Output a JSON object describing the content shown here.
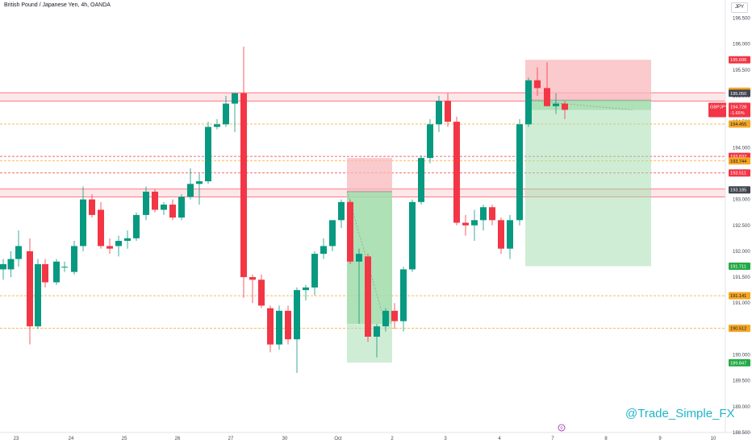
{
  "header": {
    "title": "British Pound / Japanese Yen, 4h, OANDA",
    "currency": "JPY"
  },
  "watermark": "@Trade_Simple_FX",
  "colors": {
    "up": "#089981",
    "down": "#f23645",
    "zone_fill": "#fde1e3",
    "zone_line": "#f7525f",
    "dashed_orange": "#f5a623",
    "dashed_red": "#f23645",
    "tp_fill": "#9fdca9",
    "sl_fill": "#f8b8bc"
  },
  "chart_data": {
    "type": "candlestick",
    "title": "British Pound / Japanese Yen, 4h, OANDA",
    "ylim": [
      188.5,
      196.85
    ],
    "xlim": [
      0,
      937
    ],
    "y_ticks": [
      "196.500",
      "196.000",
      "195.500",
      "195.000",
      "194.500",
      "194.000",
      "193.500",
      "193.000",
      "192.500",
      "192.000",
      "191.500",
      "191.000",
      "190.500",
      "190.000",
      "189.500",
      "189.000",
      "188.500"
    ],
    "x_ticks": [
      {
        "label": "23",
        "x": 20
      },
      {
        "label": "24",
        "x": 88
      },
      {
        "label": "25",
        "x": 154
      },
      {
        "label": "26",
        "x": 220
      },
      {
        "label": "27",
        "x": 286
      },
      {
        "label": "30",
        "x": 353
      },
      {
        "label": "Oct",
        "x": 419
      },
      {
        "label": "2",
        "x": 486
      },
      {
        "label": "3",
        "x": 552
      },
      {
        "label": "4",
        "x": 619
      },
      {
        "label": "7",
        "x": 685
      },
      {
        "label": "8",
        "x": 751
      },
      {
        "label": "9",
        "x": 818
      },
      {
        "label": "10",
        "x": 884
      }
    ],
    "candles": [
      {
        "x": 0,
        "o": 191.65,
        "h": 191.85,
        "l": 191.45,
        "c": 191.75
      },
      {
        "x": 9.5,
        "o": 191.65,
        "h": 192.0,
        "l": 191.5,
        "c": 191.85
      },
      {
        "x": 19,
        "o": 191.85,
        "h": 192.4,
        "l": 191.7,
        "c": 192.1
      },
      {
        "x": 33,
        "o": 192.0,
        "h": 192.25,
        "l": 190.2,
        "c": 190.55
      },
      {
        "x": 43,
        "o": 190.55,
        "h": 191.85,
        "l": 190.5,
        "c": 191.75
      },
      {
        "x": 52,
        "o": 191.75,
        "h": 191.85,
        "l": 191.3,
        "c": 191.4
      },
      {
        "x": 66,
        "o": 191.4,
        "h": 191.85,
        "l": 191.35,
        "c": 191.8
      },
      {
        "x": 76,
        "o": 191.7,
        "h": 191.8,
        "l": 191.6,
        "c": 191.7
      },
      {
        "x": 88,
        "o": 191.6,
        "h": 192.2,
        "l": 191.55,
        "c": 192.1
      },
      {
        "x": 99,
        "o": 192.1,
        "h": 193.25,
        "l": 192.0,
        "c": 193.0
      },
      {
        "x": 110,
        "o": 193.0,
        "h": 193.1,
        "l": 192.65,
        "c": 192.7
      },
      {
        "x": 121,
        "o": 192.8,
        "h": 192.95,
        "l": 192.05,
        "c": 192.1
      },
      {
        "x": 132,
        "o": 192.1,
        "h": 192.25,
        "l": 191.95,
        "c": 192.05
      },
      {
        "x": 143,
        "o": 192.1,
        "h": 192.3,
        "l": 191.9,
        "c": 192.2
      },
      {
        "x": 154,
        "o": 192.2,
        "h": 192.4,
        "l": 192.05,
        "c": 192.25
      },
      {
        "x": 165,
        "o": 192.25,
        "h": 192.75,
        "l": 192.2,
        "c": 192.7
      },
      {
        "x": 177,
        "o": 192.7,
        "h": 193.25,
        "l": 192.6,
        "c": 193.15
      },
      {
        "x": 188,
        "o": 193.15,
        "h": 193.2,
        "l": 192.75,
        "c": 192.8
      },
      {
        "x": 199,
        "o": 192.8,
        "h": 192.95,
        "l": 192.7,
        "c": 192.9
      },
      {
        "x": 210,
        "o": 192.9,
        "h": 193.0,
        "l": 192.6,
        "c": 192.65
      },
      {
        "x": 221,
        "o": 192.65,
        "h": 193.1,
        "l": 192.6,
        "c": 193.05
      },
      {
        "x": 232,
        "o": 193.05,
        "h": 193.6,
        "l": 193.0,
        "c": 193.3
      },
      {
        "x": 243,
        "o": 193.3,
        "h": 193.5,
        "l": 192.9,
        "c": 193.35
      },
      {
        "x": 254,
        "o": 193.35,
        "h": 194.5,
        "l": 193.3,
        "c": 194.4
      },
      {
        "x": 265,
        "o": 194.4,
        "h": 194.55,
        "l": 194.35,
        "c": 194.45
      },
      {
        "x": 276,
        "o": 194.45,
        "h": 195.0,
        "l": 194.4,
        "c": 194.85
      },
      {
        "x": 287,
        "o": 194.85,
        "h": 195.05,
        "l": 194.3,
        "c": 195.05
      },
      {
        "x": 298,
        "o": 195.05,
        "h": 195.95,
        "l": 191.1,
        "c": 191.5
      },
      {
        "x": 309,
        "o": 191.5,
        "h": 191.55,
        "l": 191.0,
        "c": 191.45
      },
      {
        "x": 320,
        "o": 191.45,
        "h": 191.55,
        "l": 190.9,
        "c": 190.95
      },
      {
        "x": 331,
        "o": 190.9,
        "h": 190.95,
        "l": 190.05,
        "c": 190.2
      },
      {
        "x": 342,
        "o": 190.2,
        "h": 190.95,
        "l": 190.1,
        "c": 190.85
      },
      {
        "x": 353,
        "o": 190.85,
        "h": 190.95,
        "l": 190.2,
        "c": 190.3
      },
      {
        "x": 364,
        "o": 190.3,
        "h": 191.3,
        "l": 189.65,
        "c": 191.25
      },
      {
        "x": 375,
        "o": 191.25,
        "h": 191.35,
        "l": 191.05,
        "c": 191.3
      },
      {
        "x": 386,
        "o": 191.3,
        "h": 192.0,
        "l": 191.15,
        "c": 191.95
      },
      {
        "x": 397,
        "o": 191.95,
        "h": 192.25,
        "l": 191.85,
        "c": 192.1
      },
      {
        "x": 408,
        "o": 192.1,
        "h": 192.6,
        "l": 192.0,
        "c": 192.6
      },
      {
        "x": 419,
        "o": 192.6,
        "h": 193.0,
        "l": 192.45,
        "c": 192.95
      },
      {
        "x": 430,
        "o": 192.95,
        "h": 193.0,
        "l": 191.75,
        "c": 191.8
      },
      {
        "x": 441,
        "o": 191.8,
        "h": 192.05,
        "l": 190.6,
        "c": 191.95
      },
      {
        "x": 452,
        "o": 191.9,
        "h": 191.95,
        "l": 190.25,
        "c": 190.35
      },
      {
        "x": 463,
        "o": 190.35,
        "h": 190.6,
        "l": 189.95,
        "c": 190.55
      },
      {
        "x": 474,
        "o": 190.55,
        "h": 190.9,
        "l": 190.45,
        "c": 190.85
      },
      {
        "x": 485,
        "o": 190.85,
        "h": 191.0,
        "l": 190.5,
        "c": 190.65
      },
      {
        "x": 496,
        "o": 190.65,
        "h": 191.7,
        "l": 190.45,
        "c": 191.65
      },
      {
        "x": 507,
        "o": 191.65,
        "h": 193.0,
        "l": 191.6,
        "c": 192.95
      },
      {
        "x": 518,
        "o": 192.95,
        "h": 193.85,
        "l": 192.9,
        "c": 193.8
      },
      {
        "x": 529,
        "o": 193.8,
        "h": 194.55,
        "l": 193.7,
        "c": 194.45
      },
      {
        "x": 540,
        "o": 194.45,
        "h": 195.0,
        "l": 194.3,
        "c": 194.9
      },
      {
        "x": 551,
        "o": 194.9,
        "h": 195.05,
        "l": 194.4,
        "c": 194.5
      },
      {
        "x": 562,
        "o": 194.5,
        "h": 194.6,
        "l": 192.5,
        "c": 192.55
      },
      {
        "x": 573,
        "o": 192.55,
        "h": 192.7,
        "l": 192.3,
        "c": 192.5
      },
      {
        "x": 584,
        "o": 192.5,
        "h": 192.8,
        "l": 192.2,
        "c": 192.6
      },
      {
        "x": 595,
        "o": 192.6,
        "h": 192.9,
        "l": 192.4,
        "c": 192.85
      },
      {
        "x": 606,
        "o": 192.85,
        "h": 192.9,
        "l": 192.5,
        "c": 192.6
      },
      {
        "x": 617,
        "o": 192.6,
        "h": 192.65,
        "l": 191.95,
        "c": 192.05
      },
      {
        "x": 628,
        "o": 192.05,
        "h": 192.7,
        "l": 191.85,
        "c": 192.6
      },
      {
        "x": 640,
        "o": 192.6,
        "h": 194.55,
        "l": 192.5,
        "c": 194.45
      },
      {
        "x": 651,
        "o": 194.45,
        "h": 195.35,
        "l": 194.4,
        "c": 195.3
      },
      {
        "x": 662,
        "o": 195.3,
        "h": 195.55,
        "l": 195.0,
        "c": 195.15
      },
      {
        "x": 674,
        "o": 195.15,
        "h": 195.65,
        "l": 194.8,
        "c": 194.8
      },
      {
        "x": 685,
        "o": 194.8,
        "h": 195.05,
        "l": 194.65,
        "c": 194.85
      },
      {
        "x": 696,
        "o": 194.85,
        "h": 194.9,
        "l": 194.55,
        "c": 194.73
      }
    ],
    "zones": [
      {
        "y_top": 195.06,
        "y_bottom": 194.9
      },
      {
        "y_top": 193.2,
        "y_bottom": 193.05
      }
    ],
    "dashed_levels": [
      {
        "value": 194.455,
        "color": "orange"
      },
      {
        "value": 193.832,
        "color": "red"
      },
      {
        "value": 193.744,
        "color": "orange"
      },
      {
        "value": 193.511,
        "color": "red"
      },
      {
        "value": 191.141,
        "color": "orange"
      },
      {
        "value": 190.512,
        "color": "orange"
      }
    ],
    "positions": [
      {
        "x_start": 430,
        "x_end": 486,
        "entry": 193.15,
        "stop": 193.8,
        "target": 189.85,
        "current": 190.6
      },
      {
        "x_start": 651,
        "x_end": 807,
        "entry": 194.92,
        "stop": 195.696,
        "target": 191.711,
        "current": 194.728
      }
    ],
    "price_labels": [
      {
        "text": "195.696",
        "value": 195.696,
        "bg": "#f23645",
        "fg": "#ffffff"
      },
      {
        "text": "195.089",
        "value": 195.089,
        "bg": "#f5a623",
        "fg": "#131722"
      },
      {
        "text": "195.050",
        "value": 195.05,
        "bg": "#434651",
        "fg": "#ffffff"
      },
      {
        "text": "194.728",
        "value": 194.728,
        "bg": "#f23645",
        "fg": "#ffffff",
        "symbol": "GBPJPY",
        "change": "-1.65%"
      },
      {
        "text": "194.455",
        "value": 194.455,
        "bg": "#f5a623",
        "fg": "#131722"
      },
      {
        "text": "193.832",
        "value": 193.832,
        "bg": "#f23645",
        "fg": "#ffffff"
      },
      {
        "text": "193.744",
        "value": 193.744,
        "bg": "#f5a623",
        "fg": "#131722"
      },
      {
        "text": "193.511",
        "value": 193.511,
        "bg": "#f23645",
        "fg": "#ffffff"
      },
      {
        "text": "193.185",
        "value": 193.185,
        "bg": "#434651",
        "fg": "#ffffff"
      },
      {
        "text": "191.711",
        "value": 191.711,
        "bg": "#22ab45",
        "fg": "#ffffff"
      },
      {
        "text": "191.141",
        "value": 191.141,
        "bg": "#f5a623",
        "fg": "#131722"
      },
      {
        "text": "190.512",
        "value": 190.512,
        "bg": "#f5a623",
        "fg": "#131722"
      },
      {
        "text": "189.847",
        "value": 189.847,
        "bg": "#22ab45",
        "fg": "#ffffff"
      }
    ]
  }
}
